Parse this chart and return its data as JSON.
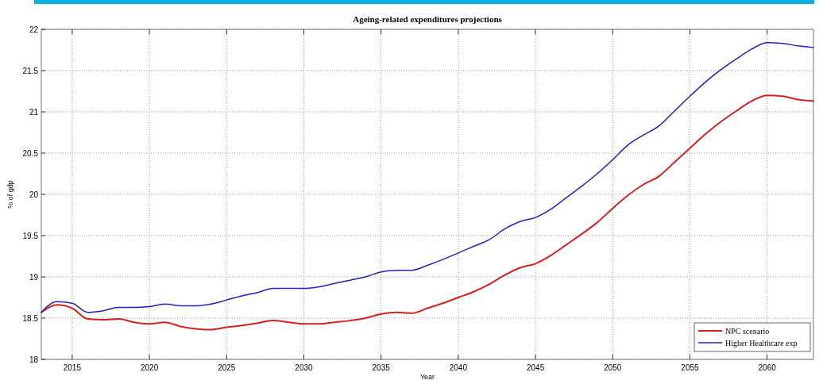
{
  "chart_data": {
    "type": "line",
    "title": "Ageing-related expenditures projections",
    "xlabel": "Year",
    "ylabel": "% of gdp",
    "x": [
      2013,
      2014,
      2015,
      2016,
      2017,
      2018,
      2019,
      2020,
      2021,
      2022,
      2023,
      2024,
      2025,
      2026,
      2027,
      2028,
      2029,
      2030,
      2031,
      2032,
      2033,
      2034,
      2035,
      2036,
      2037,
      2038,
      2039,
      2040,
      2041,
      2042,
      2043,
      2044,
      2045,
      2046,
      2047,
      2048,
      2049,
      2050,
      2051,
      2052,
      2053,
      2054,
      2055,
      2056,
      2057,
      2058,
      2059,
      2060,
      2061,
      2062,
      2063
    ],
    "series": [
      {
        "name": "NPC scenario",
        "color": "#d42020",
        "values": [
          18.57,
          18.66,
          18.62,
          18.49,
          18.48,
          18.49,
          18.45,
          18.43,
          18.45,
          18.4,
          18.37,
          18.36,
          18.39,
          18.41,
          18.44,
          18.47,
          18.45,
          18.43,
          18.43,
          18.45,
          18.47,
          18.5,
          18.55,
          18.57,
          18.56,
          18.62,
          18.68,
          18.75,
          18.82,
          18.91,
          19.02,
          19.11,
          19.16,
          19.26,
          19.39,
          19.52,
          19.66,
          19.83,
          19.99,
          20.12,
          20.22,
          20.39,
          20.56,
          20.73,
          20.88,
          21.01,
          21.13,
          21.2,
          21.19,
          21.15,
          21.13
        ]
      },
      {
        "name": "Higher Healthcare exp",
        "color": "#2020c0",
        "values": [
          18.57,
          18.7,
          18.68,
          18.57,
          18.59,
          18.63,
          18.63,
          18.64,
          18.67,
          18.65,
          18.65,
          18.67,
          18.72,
          18.77,
          18.81,
          18.86,
          18.86,
          18.86,
          18.88,
          18.92,
          18.96,
          19.0,
          19.06,
          19.08,
          19.08,
          19.14,
          19.21,
          19.29,
          19.37,
          19.45,
          19.58,
          19.67,
          19.72,
          19.82,
          19.96,
          20.1,
          20.25,
          20.42,
          20.6,
          20.72,
          20.83,
          21.01,
          21.19,
          21.36,
          21.51,
          21.64,
          21.76,
          21.84,
          21.83,
          21.8,
          21.78
        ]
      }
    ],
    "xlim": [
      2013,
      2063
    ],
    "xticks": [
      2015,
      2020,
      2025,
      2030,
      2035,
      2040,
      2045,
      2050,
      2055,
      2060
    ],
    "ylim": [
      18,
      22
    ],
    "yticks": [
      18,
      18.5,
      19,
      19.5,
      20,
      20.5,
      21,
      21.5,
      22
    ],
    "grid": true,
    "legend": "bottom right",
    "line_style": "solid"
  }
}
